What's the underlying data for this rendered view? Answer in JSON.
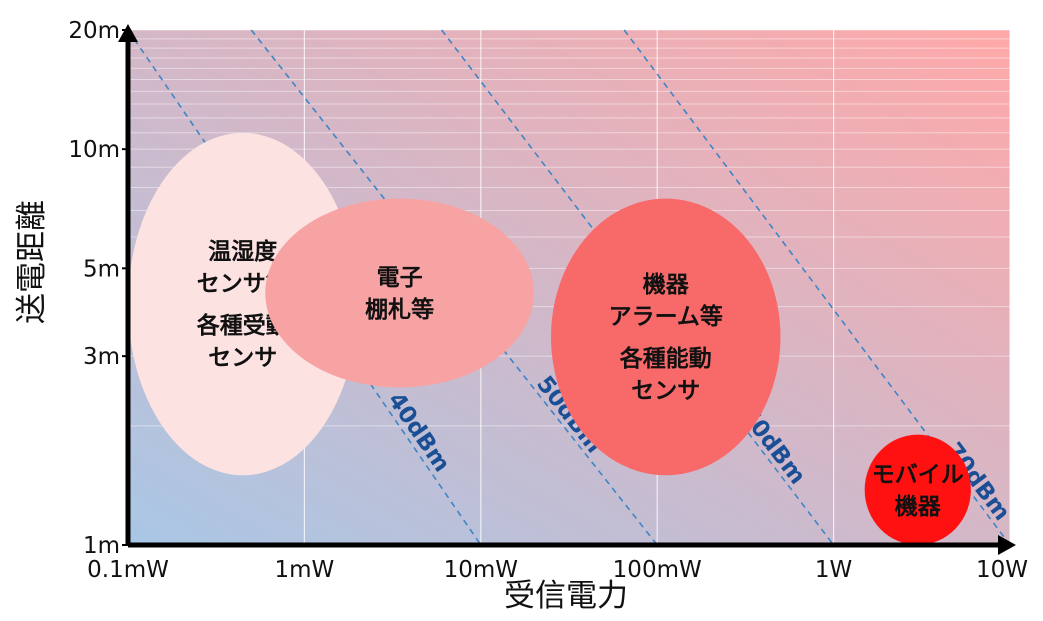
{
  "chart_data": {
    "type": "scatter",
    "title": "",
    "xlabel": "受信電力",
    "ylabel": "送電距離",
    "x_scale": "log",
    "y_scale": "log",
    "x_ticks": [
      {
        "value": 0.1,
        "label": "0.1mW"
      },
      {
        "value": 1,
        "label": "1mW"
      },
      {
        "value": 10,
        "label": "10mW"
      },
      {
        "value": 100,
        "label": "100mW"
      },
      {
        "value": 1000,
        "label": "1W"
      },
      {
        "value": 10000,
        "label": "10W"
      }
    ],
    "y_ticks": [
      {
        "value": 1,
        "label": "1m"
      },
      {
        "value": 3,
        "label": "3m"
      },
      {
        "value": 5,
        "label": "5m"
      },
      {
        "value": 10,
        "label": "10m"
      },
      {
        "value": 20,
        "label": "20m"
      }
    ],
    "xlim": [
      0.1,
      10000
    ],
    "ylim": [
      1,
      20
    ],
    "grid": true,
    "background_gradient": [
      "#a9c7e6",
      "#ffa8a8"
    ],
    "regions": [
      {
        "lines": [
          "温湿度",
          "センサ等",
          "各種受動",
          "センサ"
        ],
        "x_range": [
          0.1,
          2.0
        ],
        "y_range": [
          1.5,
          11.0
        ],
        "color": "#fde2e2"
      },
      {
        "lines": [
          "電子",
          "棚札等"
        ],
        "x_range": [
          0.6,
          20
        ],
        "y_range": [
          2.5,
          7.5
        ],
        "color": "#f7a3a3"
      },
      {
        "lines": [
          "機器",
          "アラーム等",
          "各種能動",
          "センサ"
        ],
        "x_range": [
          25,
          500
        ],
        "y_range": [
          1.5,
          7.5
        ],
        "color": "#f86a6a"
      },
      {
        "lines": [
          "モバイル",
          "機器"
        ],
        "x_range": [
          1500,
          6000
        ],
        "y_range": [
          1.0,
          1.9
        ],
        "color": "#ff1111"
      }
    ],
    "eirp_lines": [
      {
        "label": "EIRP 40dBm",
        "x_at_ymin": 10,
        "x_at_ymax": 0.1
      },
      {
        "label": "50dBm",
        "x_at_ymin": 100,
        "x_at_ymax": 0.5
      },
      {
        "label": "60dBm",
        "x_at_ymin": 1000,
        "x_at_ymax": 6
      },
      {
        "label": "70dBm",
        "x_at_ymin": 10000,
        "x_at_ymax": 65
      }
    ],
    "colors": {
      "eirp_line": "#3d85c6",
      "eirp_text": "#1a4f96",
      "axis": "#000000",
      "grid": "#ffffff"
    }
  }
}
